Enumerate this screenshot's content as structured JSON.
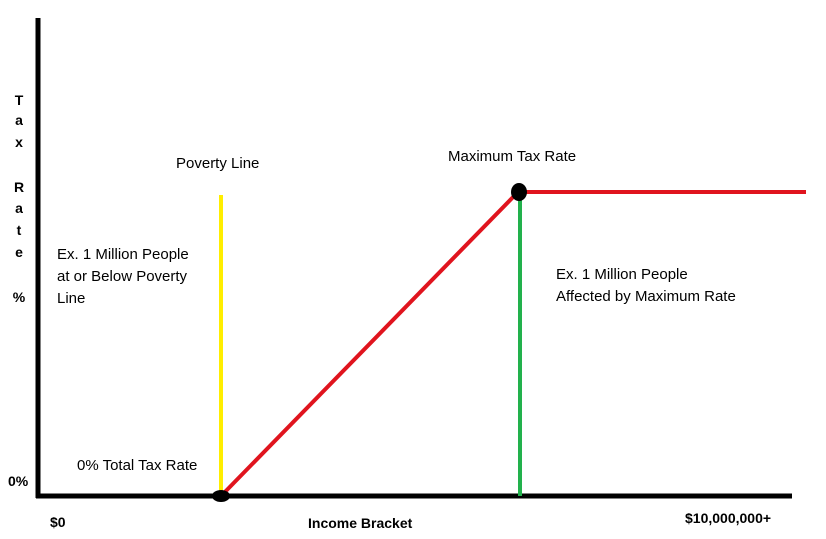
{
  "y_axis": {
    "letters": [
      "T",
      "a",
      "x",
      "R",
      "a",
      "t",
      "e",
      "%"
    ],
    "zero_label": "0%"
  },
  "x_axis": {
    "label": "Income Bracket",
    "min_label": "$0",
    "max_label": "$10,000,000+"
  },
  "annotations": {
    "poverty_line": "Poverty Line",
    "max_rate": "Maximum Tax Rate",
    "zero_rate": "0% Total Tax Rate",
    "poverty_note": [
      "Ex. 1 Million People",
      "at or Below Poverty",
      "Line"
    ],
    "max_note": [
      "Ex. 1 Million People",
      "Affected by Maximum Rate"
    ]
  },
  "colors": {
    "axis": "#000000",
    "poverty_line": "#ffee00",
    "tax_curve": "#e0141e",
    "max_marker_line": "#22b14c",
    "points": "#000000"
  }
}
